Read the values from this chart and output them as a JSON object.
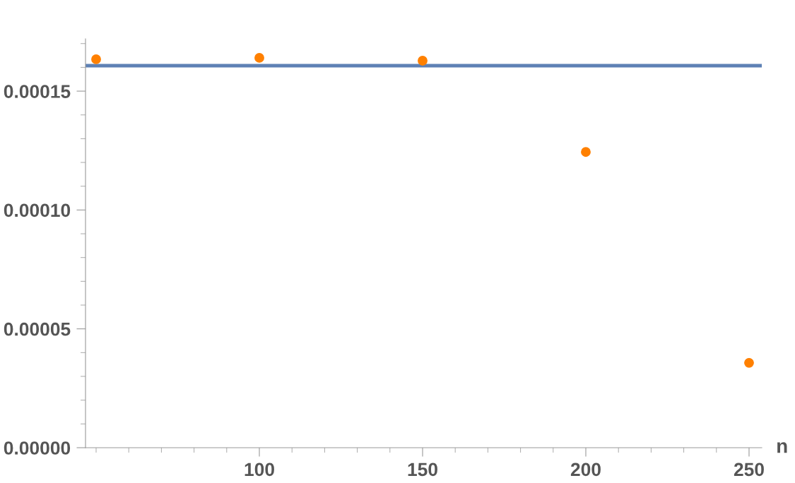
{
  "chart_data": {
    "type": "scatter",
    "xlabel": "n",
    "x": [
      50,
      100,
      150,
      200,
      250
    ],
    "series": [
      {
        "color": "#ff8000",
        "values": [
          0.0001634,
          0.000164,
          0.0001628,
          0.0001244,
          3.57e-05
        ]
      }
    ],
    "marker": "circle",
    "xlim": [
      46.75,
      253.9
    ],
    "ylim": [
      0,
      0.000172
    ],
    "xticks": [
      {
        "value": 50,
        "label": null
      },
      {
        "value": 60,
        "label": null
      },
      {
        "value": 70,
        "label": null
      },
      {
        "value": 80,
        "label": null
      },
      {
        "value": 90,
        "label": null
      },
      100,
      {
        "value": 110,
        "label": null
      },
      {
        "value": 120,
        "label": null
      },
      {
        "value": 130,
        "label": null
      },
      {
        "value": 140,
        "label": null
      },
      150,
      {
        "value": 160,
        "label": null
      },
      {
        "value": 170,
        "label": null
      },
      {
        "value": 180,
        "label": null
      },
      {
        "value": 190,
        "label": null
      },
      200,
      {
        "value": 210,
        "label": null
      },
      {
        "value": 220,
        "label": null
      },
      {
        "value": 230,
        "label": null
      },
      {
        "value": 240,
        "label": null
      },
      250
    ],
    "yticks": [
      {
        "value": 0,
        "label": "0.00000"
      },
      {
        "value": 1e-05,
        "label": null
      },
      {
        "value": 2e-05,
        "label": null
      },
      {
        "value": 3e-05,
        "label": null
      },
      {
        "value": 4e-05,
        "label": null
      },
      {
        "value": 5e-05,
        "label": "0.00005"
      },
      {
        "value": 6e-05,
        "label": null
      },
      {
        "value": 7e-05,
        "label": null
      },
      {
        "value": 8e-05,
        "label": null
      },
      {
        "value": 9e-05,
        "label": null
      },
      {
        "value": 0.0001,
        "label": "0.00010"
      },
      {
        "value": 0.00011,
        "label": null
      },
      {
        "value": 0.00012,
        "label": null
      },
      {
        "value": 0.00013,
        "label": null
      },
      {
        "value": 0.00014,
        "label": null
      },
      {
        "value": 0.00015,
        "label": "0.00015"
      },
      {
        "value": 0.00016,
        "label": null
      },
      {
        "value": 0.00017,
        "label": null
      }
    ],
    "ref_lines": [
      {
        "axis": "y",
        "value": 0.0001607,
        "color": "#5e81b5",
        "line_style": "solid"
      }
    ],
    "grid": false,
    "legend": false
  }
}
